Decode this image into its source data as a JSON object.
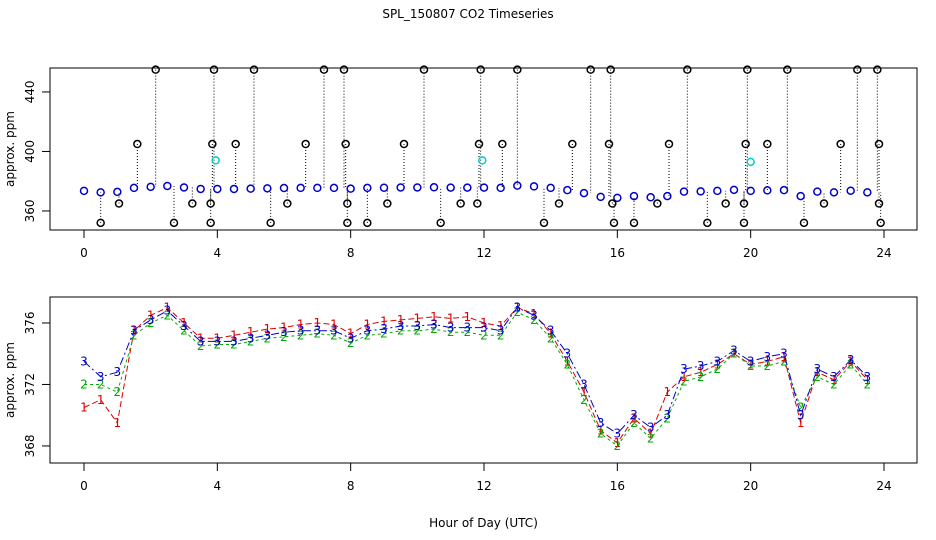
{
  "title": "SPL_150807  CO2 Timeseries",
  "chart_data": [
    {
      "type": "scatter",
      "ylabel": "approx. ppm",
      "xlim": [
        -1.02,
        24.99
      ],
      "xticks": [
        0,
        4,
        8,
        12,
        16,
        20,
        24
      ],
      "ylim": [
        347.2,
        456.1
      ],
      "yticks": [
        360,
        400,
        440
      ],
      "x": [
        0,
        0.5,
        1,
        1.5,
        2,
        2.5,
        3,
        3.5,
        4,
        4.5,
        5,
        5.5,
        6,
        6.5,
        7,
        7.5,
        8,
        8.5,
        9,
        9.5,
        10,
        10.5,
        11,
        11.5,
        12,
        12.5,
        13,
        13.5,
        14,
        14.5,
        15,
        15.5,
        16,
        16.5,
        17,
        17.5,
        18,
        18.5,
        19,
        19.5,
        20,
        20.5,
        21,
        21.5,
        22,
        22.5,
        23,
        23.5
      ],
      "series": [
        {
          "color": "#0000cc",
          "values": [
            373.5,
            372.5,
            372.8,
            375.5,
            376.2,
            376.8,
            375.8,
            374.8,
            374.8,
            374.8,
            375.0,
            375.2,
            375.4,
            375.5,
            375.5,
            375.5,
            375.0,
            375.5,
            375.6,
            375.8,
            375.8,
            375.9,
            375.7,
            375.7,
            375.7,
            375.5,
            377.0,
            376.5,
            375.5,
            374.0,
            372.0,
            369.5,
            368.8,
            370.0,
            369.2,
            370.0,
            373.0,
            373.2,
            373.5,
            374.2,
            373.5,
            373.8,
            374.0,
            370.0,
            373.0,
            372.5,
            373.6,
            372.5
          ]
        }
      ],
      "outliers": {
        "color": "#000000",
        "x": [
          2.15,
          3.9,
          5.1,
          7.2,
          7.8,
          10.2,
          11.9,
          13.0,
          15.2,
          15.8,
          18.1,
          19.9,
          21.1,
          23.2,
          23.8,
          1.6,
          3.85,
          4.55,
          6.65,
          7.85,
          9.6,
          11.85,
          12.55,
          14.65,
          15.75,
          17.55,
          19.85,
          20.5,
          22.7,
          23.85,
          1.05,
          3.25,
          3.8,
          6.1,
          7.9,
          9.1,
          11.3,
          11.8,
          14.25,
          15.85,
          17.2,
          19.25,
          19.8,
          22.2,
          23.85,
          0.5,
          2.7,
          3.8,
          5.6,
          7.9,
          8.5,
          10.7,
          13.8,
          15.9,
          16.5,
          18.7,
          19.8,
          21.6,
          23.9
        ],
        "values": [
          455,
          455,
          455,
          455,
          455,
          455,
          455,
          455,
          455,
          455,
          455,
          455,
          455,
          455,
          455,
          405,
          405,
          405,
          405,
          405,
          405,
          405,
          405,
          405,
          405,
          405,
          405,
          405,
          405,
          405,
          365,
          365,
          365,
          365,
          365,
          365,
          365,
          365,
          365,
          365,
          365,
          365,
          365,
          365,
          365,
          352,
          352,
          352,
          352,
          352,
          352,
          352,
          352,
          352,
          352,
          352,
          352,
          352,
          352
        ]
      },
      "flags": {
        "color": "#00cccc",
        "x": [
          3.95,
          11.95,
          20.0
        ],
        "values": [
          394,
          394,
          393
        ]
      }
    },
    {
      "type": "line",
      "ylabel": "approx. ppm",
      "xlabel": "Hour of Day (UTC)",
      "xlim": [
        -1.02,
        24.99
      ],
      "xticks": [
        0,
        4,
        8,
        12,
        16,
        20,
        24
      ],
      "ylim": [
        366.89,
        377.69
      ],
      "yticks": [
        368,
        372,
        376
      ],
      "x": [
        0,
        0.5,
        1,
        1.5,
        2,
        2.5,
        3,
        3.5,
        4,
        4.5,
        5,
        5.5,
        6,
        6.5,
        7,
        7.5,
        8,
        8.5,
        9,
        9.5,
        10,
        10.5,
        11,
        11.5,
        12,
        12.5,
        13,
        13.5,
        14,
        14.5,
        15,
        15.5,
        16,
        16.5,
        17,
        17.5,
        18,
        18.5,
        19,
        19.5,
        20,
        20.5,
        21,
        21.5,
        22,
        22.5,
        23,
        23.5
      ],
      "series": [
        {
          "marker": "1",
          "color": "#dd0000",
          "values": [
            370.5,
            371,
            369.5,
            375.5,
            376.5,
            377.0,
            376.0,
            375.0,
            375.0,
            375.2,
            375.4,
            375.6,
            375.7,
            375.9,
            376.0,
            375.9,
            375.3,
            375.9,
            376.1,
            376.2,
            376.3,
            376.4,
            376.3,
            376.4,
            376.0,
            375.8,
            377.0,
            376.6,
            375.3,
            373.5,
            371.5,
            369.0,
            368.2,
            369.8,
            368.8,
            371.5,
            372.5,
            372.8,
            373.3,
            374.0,
            373.3,
            373.5,
            373.8,
            369.5,
            372.8,
            372.3,
            373.5,
            372.3
          ]
        },
        {
          "marker": "2",
          "color": "#00aa00",
          "values": [
            372,
            372,
            371.5,
            375.2,
            376.0,
            376.5,
            375.5,
            374.5,
            374.6,
            374.6,
            374.8,
            375.0,
            375.1,
            375.2,
            375.3,
            375.2,
            374.7,
            375.2,
            375.3,
            375.5,
            375.5,
            375.6,
            375.4,
            375.4,
            375.2,
            375.2,
            376.7,
            376.2,
            375.0,
            373.3,
            371.0,
            368.8,
            368.0,
            369.5,
            368.5,
            369.8,
            372.2,
            372.5,
            373.0,
            374.0,
            373.2,
            373.2,
            373.5,
            370.5,
            372.5,
            372.0,
            373.3,
            372.0
          ]
        },
        {
          "marker": "3",
          "color": "#0000cc",
          "values": [
            373.5,
            372.5,
            372.8,
            375.5,
            376.2,
            376.8,
            375.8,
            374.8,
            374.8,
            374.8,
            375.0,
            375.2,
            375.4,
            375.5,
            375.5,
            375.5,
            375.0,
            375.5,
            375.6,
            375.8,
            375.8,
            375.9,
            375.7,
            375.7,
            375.7,
            375.5,
            377.0,
            376.5,
            375.5,
            374.0,
            372.0,
            369.5,
            368.8,
            370.0,
            369.2,
            370.0,
            373.0,
            373.2,
            373.5,
            374.2,
            373.5,
            373.8,
            374.0,
            370.0,
            373.0,
            372.5,
            373.6,
            372.5
          ]
        }
      ]
    }
  ]
}
